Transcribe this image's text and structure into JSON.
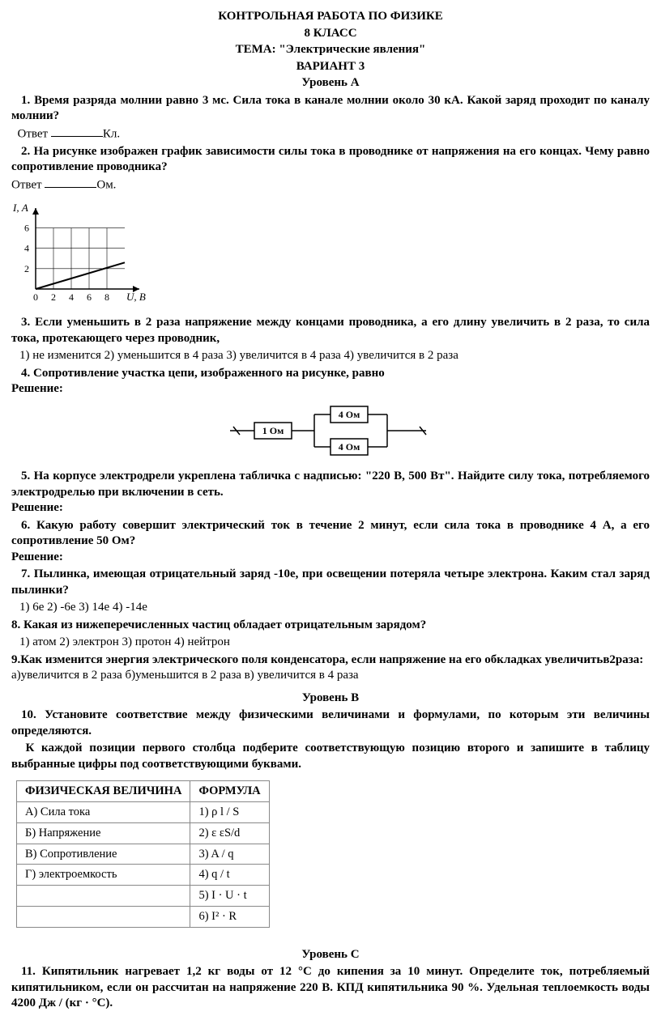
{
  "header": {
    "title": "КОНТРОЛЬНАЯ РАБОТА ПО ФИЗИКЕ",
    "grade": "8 КЛАСС",
    "topic": "ТЕМА: \"Электрические явления\"",
    "variant": "ВАРИАНТ 3"
  },
  "levels": {
    "A": "Уровень А",
    "B": "Уровень В",
    "C": "Уровень С"
  },
  "q1": {
    "num": "1. ",
    "text": "Время разряда молнии равно 3 мс. Сила тока в канале молнии около 30 кА. Какой заряд проходит по каналу молнии?",
    "answer_label": "Ответ",
    "unit": "Кл."
  },
  "q2": {
    "num": "2. ",
    "text1": "На рисунке изображен график зависимости силы тока в проводнике от напряжения на его концах. Чему равно сопротивление проводника?",
    "answer_label": "Ответ",
    "unit": "Ом."
  },
  "chart": {
    "type": "line",
    "width": 170,
    "height": 130,
    "x_label": "U, В",
    "y_label": "I, А",
    "x_ticks": [
      0,
      2,
      4,
      6,
      8
    ],
    "y_ticks": [
      2,
      4,
      6
    ],
    "xlim": [
      0,
      10
    ],
    "ylim": [
      0,
      7
    ],
    "grid_color": "#000",
    "line_color": "#000",
    "bg": "#fff",
    "series_start": [
      0,
      0
    ],
    "series_end": [
      10,
      2.6
    ]
  },
  "q3": {
    "num": "3. ",
    "text": "Если уменьшить в 2 раза напряжение между концами проводника, а его длину увеличить в 2 раза, то сила тока, протекающего через проводник,",
    "options": "1) не изменится   2) уменьшится в 4 раза   3) увеличится в 4 раза     4) увеличится в 2 раза"
  },
  "q4": {
    "num": "4. ",
    "text": "Сопротивление участка цепи, изображенного на рисунке, равно",
    "solution_label": "Решение:"
  },
  "circuit": {
    "r1": "1 Ом",
    "r2": "4 Ом",
    "r3": "4 Ом",
    "line_color": "#000",
    "bg": "#fff"
  },
  "q5": {
    "num": "5. ",
    "text": "На корпусе электродрели укреплена табличка с надписью: \"220 В, 500 Вт\". Найдите силу тока, потребляемого электродрелью при включении в сеть.",
    "solution_label": "Решение:"
  },
  "q6": {
    "num": "6. ",
    "text": "Какую работу совершит электрический ток в течение 2 минут, если сила тока в проводнике 4 А, а его сопротивление 50 Ом?",
    "solution_label": "Решение:"
  },
  "q7": {
    "num": "7. ",
    "text": "Пылинка, имеющая отрицательный заряд -10e, при освещении потеряла четыре электрона. Каким стал заряд пылинки?",
    "options": "1) 6e    2) -6e    3) 14e     4) -14e"
  },
  "q8": {
    "num": "8. ",
    "text": "Какая из нижеперечисленных частиц обладает отрицательным зарядом?",
    "options": "1) атом    2) электрон     3) протон       4) нейтрон"
  },
  "q9": {
    "num": "9.",
    "text": "Как изменится энергия электрического поля конденсатора, если напряжение на его обкладках увеличитьв2раза:",
    "options": "а)увеличится в  2 раза    б)уменьшится в  2 раза    в) увеличится в 4 раза"
  },
  "q10": {
    "num": "10. ",
    "text1": "Установите соответствие между физическими величинами и формулами, по которым эти величины определяются.",
    "text2": "К каждой позиции первого столбца подберите соответствующую позицию второго и запишите в таблицу выбранные цифры под соответствующими буквами."
  },
  "table": {
    "headers": [
      "ФИЗИЧЕСКАЯ ВЕЛИЧИНА",
      "ФОРМУЛА"
    ],
    "rows": [
      [
        "А) Сила тока",
        "1) ρ l / S"
      ],
      [
        "Б) Напряжение",
        "2) ε εS/d"
      ],
      [
        "В) Сопротивление",
        "3) A / q"
      ],
      [
        "Г) электроемкость",
        "4) q / t"
      ],
      [
        "",
        "5) I · U · t"
      ],
      [
        "",
        "6) I² · R"
      ]
    ]
  },
  "q11": {
    "num": "11. ",
    "text": "Кипятильник нагревает 1,2 кг воды от 12 °С до кипения за 10 минут. Определите ток, потребляемый кипятильником, если он рассчитан на напряжение 220 В. КПД кипятильника 90 %. Удельная теплоемкость воды 4200 Дж / (кг · °С)."
  }
}
